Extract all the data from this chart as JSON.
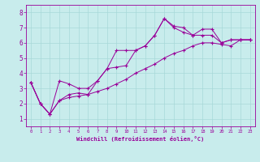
{
  "xlabel": "Windchill (Refroidissement éolien,°C)",
  "bg_color": "#c8ecec",
  "line_color": "#990099",
  "grid_color": "#a8d8d8",
  "xlim": [
    -0.5,
    23.5
  ],
  "ylim": [
    0.5,
    8.5
  ],
  "xticks": [
    0,
    1,
    2,
    3,
    4,
    5,
    6,
    7,
    8,
    9,
    10,
    11,
    12,
    13,
    14,
    15,
    16,
    17,
    18,
    19,
    20,
    21,
    22,
    23
  ],
  "yticks": [
    1,
    2,
    3,
    4,
    5,
    6,
    7,
    8
  ],
  "lines": [
    {
      "x": [
        0,
        1,
        2,
        3,
        4,
        5,
        6,
        7,
        8,
        9,
        10,
        11,
        12,
        13,
        14,
        15,
        16,
        17,
        18,
        19,
        20,
        21,
        22,
        23
      ],
      "y": [
        3.4,
        2.0,
        1.3,
        3.5,
        3.3,
        3.0,
        3.0,
        3.5,
        4.3,
        5.5,
        5.5,
        5.5,
        5.8,
        6.5,
        7.6,
        7.0,
        6.7,
        6.5,
        6.5,
        6.5,
        6.0,
        6.2,
        6.2,
        6.2
      ]
    },
    {
      "x": [
        0,
        1,
        2,
        3,
        4,
        5,
        6,
        7,
        8,
        9,
        10,
        11,
        12,
        13,
        14,
        15,
        16,
        17,
        18,
        19,
        20,
        21,
        22,
        23
      ],
      "y": [
        3.4,
        2.0,
        1.3,
        2.2,
        2.6,
        2.7,
        2.6,
        3.5,
        4.3,
        4.4,
        4.5,
        5.5,
        5.8,
        6.5,
        7.6,
        7.1,
        7.0,
        6.5,
        6.9,
        6.9,
        6.0,
        6.2,
        6.2,
        6.2
      ]
    },
    {
      "x": [
        0,
        1,
        2,
        3,
        4,
        5,
        6,
        7,
        8,
        9,
        10,
        11,
        12,
        13,
        14,
        15,
        16,
        17,
        18,
        19,
        20,
        21,
        22,
        23
      ],
      "y": [
        3.4,
        2.0,
        1.3,
        2.2,
        2.4,
        2.5,
        2.6,
        2.8,
        3.0,
        3.3,
        3.6,
        4.0,
        4.3,
        4.6,
        5.0,
        5.3,
        5.5,
        5.8,
        6.0,
        6.0,
        5.9,
        5.8,
        6.2,
        6.2
      ]
    }
  ]
}
